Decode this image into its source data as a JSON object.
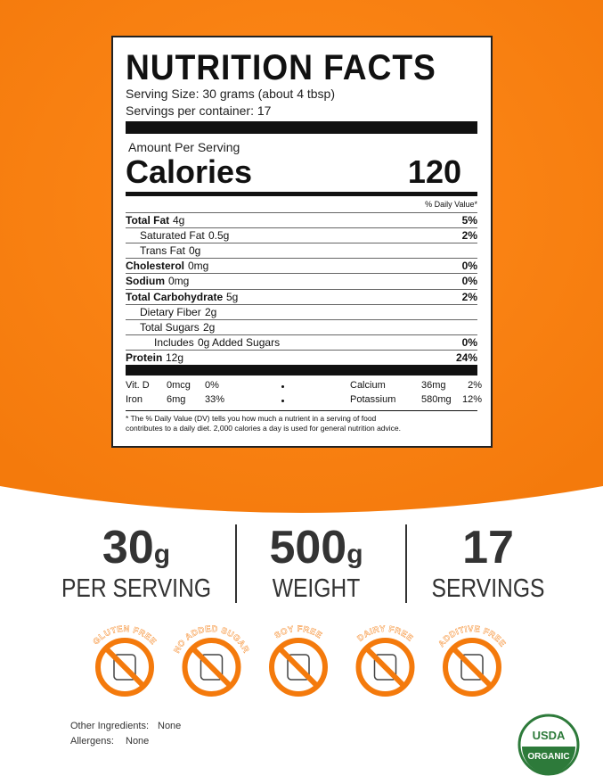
{
  "label": {
    "title": "NUTRITION FACTS",
    "serving_size": "Serving Size: 30 grams (about 4 tbsp)",
    "servings_per_container": "Servings per container: 17",
    "amount_per_serving": "Amount Per Serving",
    "calories_label": "Calories",
    "calories": "120",
    "dv_header": "% Daily Value*",
    "nutrients": [
      {
        "name": "Total Fat",
        "amount": "4g",
        "dv": "5%",
        "bold": true,
        "indent": 0
      },
      {
        "name": "Saturated Fat",
        "amount": "0.5g",
        "dv": "2%",
        "bold": false,
        "indent": 1
      },
      {
        "name": "Trans Fat",
        "amount": "0g",
        "bold": false,
        "indent": 1
      },
      {
        "name": "Cholesterol",
        "amount": "0mg",
        "dv": "0%",
        "bold": true,
        "indent": 0
      },
      {
        "name": "Sodium",
        "amount": "0mg",
        "dv": "0%",
        "bold": true,
        "indent": 0
      },
      {
        "name": "Total Carbohydrate",
        "amount": "5g",
        "dv": "2%",
        "bold": true,
        "indent": 0
      },
      {
        "name": "Dietary Fiber",
        "amount": "2g",
        "bold": false,
        "indent": 1
      },
      {
        "name": "Total Sugars",
        "amount": "2g",
        "bold": false,
        "indent": 1
      },
      {
        "name": "Includes",
        "amount": "0g Added Sugars",
        "dv": "0%",
        "bold": false,
        "indent": 2
      },
      {
        "name": "Protein",
        "amount": "12g",
        "dv": "24%",
        "bold": true,
        "indent": 0
      }
    ],
    "minerals": [
      [
        {
          "name": "Vit. D",
          "amount": "0mcg",
          "dv": "0%"
        },
        {
          "name": "Calcium",
          "amount": "36mg",
          "dv": "2%"
        }
      ],
      [
        {
          "name": "Iron",
          "amount": "6mg",
          "dv": "33%"
        },
        {
          "name": "Potassium",
          "amount": "580mg",
          "dv": "12%"
        }
      ]
    ],
    "footnote": [
      "* The % Daily Value (DV) tells you how much a nutrient in a serving of food",
      "contributes to a daily diet. 2,000 calories a day is used for general nutrition advice."
    ]
  },
  "stats": [
    {
      "value": "30",
      "unit": "g",
      "label": "PER SERVING"
    },
    {
      "value": "500",
      "unit": "g",
      "label": "WEIGHT"
    },
    {
      "value": "17",
      "label": "SERVINGS"
    }
  ],
  "badges": [
    "GLUTEN FREE",
    "NO ADDED SUGAR",
    "SOY FREE",
    "DAIRY FREE",
    "ADDITIVE FREE"
  ],
  "ingredients": {
    "label": "Other Ingredients:",
    "value": "None"
  },
  "allergens": {
    "label": "Allergens:",
    "value": "None"
  },
  "seal": {
    "top": "USDA",
    "bottom": "ORGANIC"
  }
}
